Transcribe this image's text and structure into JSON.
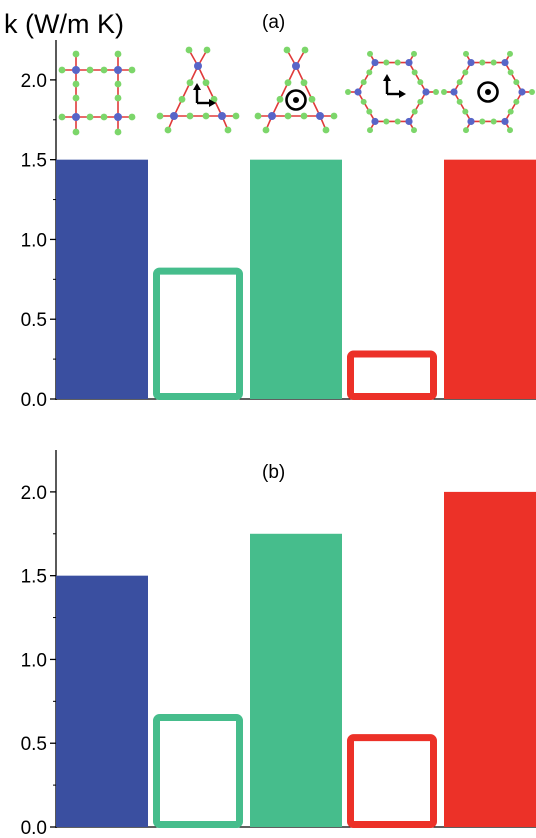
{
  "colors": {
    "blue": "#3a4fa0",
    "green": "#46bd8c",
    "red": "#ec3128",
    "atom_green": "#7cd66a",
    "atom_blue": "#5865c8",
    "bond_red": "#e03a3a",
    "white": "#ffffff"
  },
  "chart_data": [
    {
      "type": "bar",
      "panel_label": "(a)",
      "ylabel": "k (W/m K)",
      "ylim": [
        0,
        2.25
      ],
      "yticks": [
        "0.0",
        "0.5",
        "1.0",
        "1.5",
        "2.0"
      ],
      "grid": false,
      "bars": [
        {
          "value": 1.5,
          "color": "blue",
          "style": "filled",
          "structure": "square lattice"
        },
        {
          "value": 0.83,
          "color": "green",
          "style": "outline",
          "structure": "triangle lattice, in-plane arrows"
        },
        {
          "value": 1.5,
          "color": "green",
          "style": "filled",
          "structure": "triangle lattice, out-of-plane symbol"
        },
        {
          "value": 0.31,
          "color": "red",
          "style": "outline",
          "structure": "hexagon lattice, in-plane arrows"
        },
        {
          "value": 1.5,
          "color": "red",
          "style": "filled",
          "structure": "hexagon lattice, out-of-plane symbol"
        }
      ]
    },
    {
      "type": "bar",
      "panel_label": "(b)",
      "ylabel": "",
      "ylim": [
        0,
        2.25
      ],
      "yticks": [
        "0.0",
        "0.5",
        "1.0",
        "1.5",
        "2.0"
      ],
      "grid": false,
      "bars": [
        {
          "value": 1.5,
          "color": "blue",
          "style": "filled"
        },
        {
          "value": 0.68,
          "color": "green",
          "style": "outline"
        },
        {
          "value": 1.75,
          "color": "green",
          "style": "filled"
        },
        {
          "value": 0.56,
          "color": "red",
          "style": "outline"
        },
        {
          "value": 2.0,
          "color": "red",
          "style": "filled"
        }
      ]
    }
  ]
}
